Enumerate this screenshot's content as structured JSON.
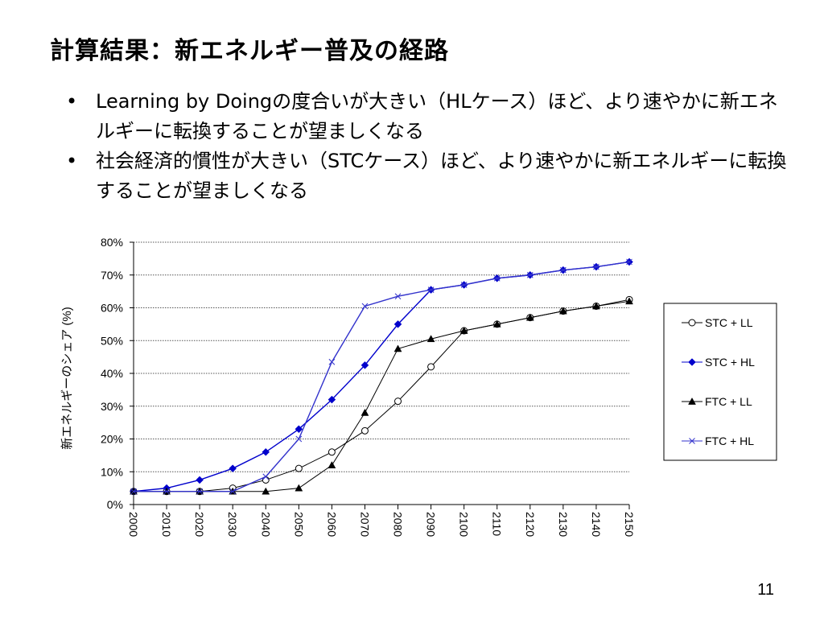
{
  "slide": {
    "title": "計算結果：新エネルギー普及の経路",
    "bullets": [
      "Learning by Doingの度合いが大きい（HLケース）ほど、より速やかに新エネルギーに転換することが望ましくなる",
      "社会経済的慣性が大きい（STCケース）ほど、より速やかに新エネルギーに転換することが望ましくなる"
    ],
    "bullet_marker": "•",
    "page_number": "11"
  },
  "chart_data": {
    "type": "line",
    "title": "",
    "xlabel": "",
    "ylabel": "新エネルギーのシェア (%)",
    "x": [
      2000,
      2010,
      2020,
      2030,
      2040,
      2050,
      2060,
      2070,
      2080,
      2090,
      2100,
      2110,
      2120,
      2130,
      2140,
      2150
    ],
    "ylim": [
      0,
      80
    ],
    "yticks": [
      "0%",
      "10%",
      "20%",
      "30%",
      "40%",
      "50%",
      "60%",
      "70%",
      "80%"
    ],
    "grid": "horizontal dotted",
    "legend_position": "right",
    "series": [
      {
        "name": "STC + LL",
        "color": "#000000",
        "marker": "open-circle",
        "values": [
          4,
          4,
          4,
          5,
          7.5,
          11,
          16,
          22.5,
          31.5,
          42,
          53,
          55,
          57,
          59,
          60.5,
          62.5
        ]
      },
      {
        "name": "STC + HL",
        "color": "#0000cc",
        "marker": "filled-diamond",
        "values": [
          4,
          5,
          7.5,
          11,
          16,
          23,
          32,
          42.5,
          55,
          65.5,
          67,
          69,
          70,
          71.5,
          72.5,
          74
        ]
      },
      {
        "name": "FTC + LL",
        "color": "#000000",
        "marker": "filled-triangle",
        "values": [
          4,
          4,
          4,
          4,
          4,
          5,
          12,
          28,
          47.5,
          50.5,
          53,
          55,
          57,
          59,
          60.5,
          62
        ]
      },
      {
        "name": "FTC + HL",
        "color": "#3333cc",
        "marker": "x",
        "values": [
          4,
          4,
          4,
          4,
          8.5,
          20,
          43.5,
          60.5,
          63.5,
          65.5,
          67,
          69,
          70,
          71.5,
          72.5,
          74
        ]
      }
    ]
  }
}
